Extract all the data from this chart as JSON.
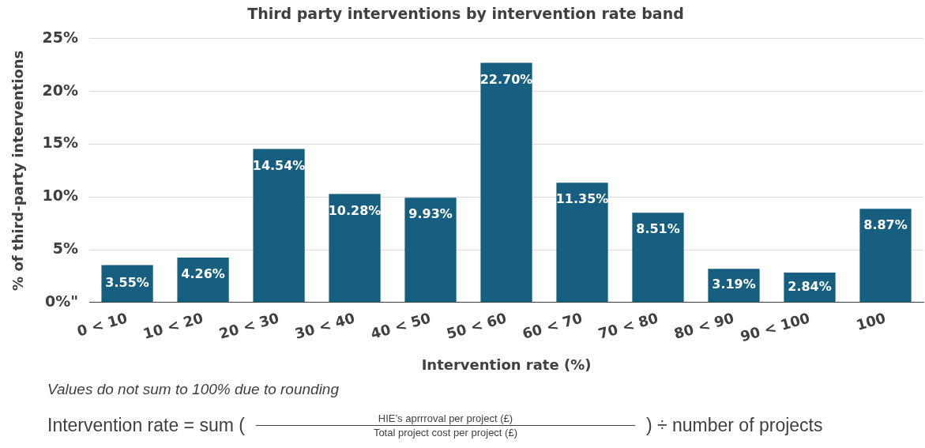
{
  "chart_data": {
    "type": "bar",
    "title": "Third party interventions by intervention rate band",
    "xlabel": "Intervention rate (%)",
    "ylabel": "% of third-party interventions",
    "categories": [
      "0 < 10",
      "10 < 20",
      "20 < 30",
      "30 < 40",
      "40 < 50",
      "50 < 60",
      "60 < 70",
      "70 < 80",
      "80 < 90",
      "90 < 100",
      "100"
    ],
    "values": [
      3.55,
      4.26,
      14.54,
      10.28,
      9.93,
      22.7,
      11.35,
      8.51,
      3.19,
      2.84,
      8.87
    ],
    "value_labels": [
      "3.55%",
      "4.26%",
      "14.54%",
      "10.28%",
      "9.93%",
      "22.70%",
      "11.35%",
      "8.51%",
      "3.19%",
      "2.84%",
      "8.87%"
    ],
    "color": "#165f80",
    "ylim": [
      0,
      25
    ],
    "yticks": [
      {
        "value": 0,
        "label": "0%\""
      },
      {
        "value": 5,
        "label": "5%"
      },
      {
        "value": 10,
        "label": "10%"
      },
      {
        "value": 15,
        "label": "15%"
      },
      {
        "value": 20,
        "label": "20%"
      },
      {
        "value": 25,
        "label": "25%"
      }
    ],
    "grid": "y",
    "legend": false,
    "annotations": [
      "Values do not sum to 100% due to rounding",
      "Intervention rate  = sum (",
      "HIE’s aprrroval per project (£)",
      "Total project cost per project (£)",
      ") ÷ number of projects"
    ]
  }
}
